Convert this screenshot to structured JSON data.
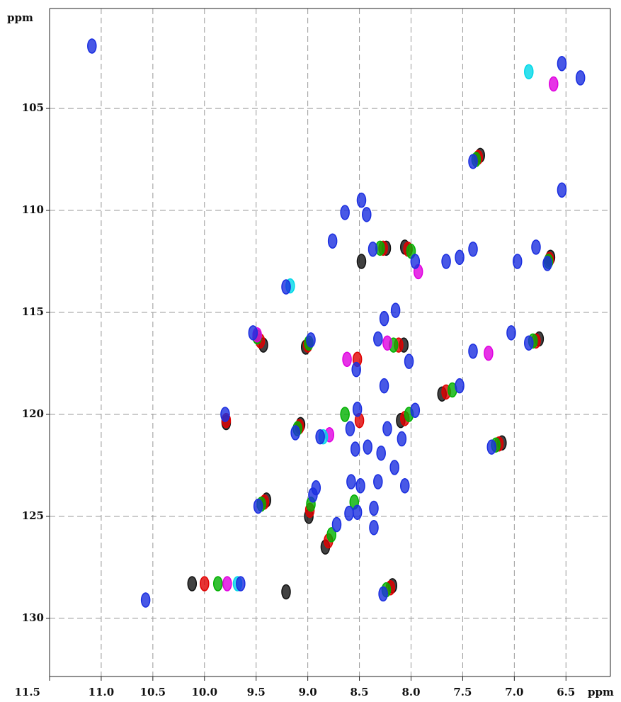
{
  "chart_data": {
    "type": "scatter",
    "x_label": "ppm",
    "y_label": "ppm",
    "xlim": [
      11.5,
      6.07
    ],
    "ylim": [
      100.1,
      132.85
    ],
    "xticks": [
      11.5,
      {
        "value": 11,
        "label": "11.0"
      },
      10.5,
      {
        "value": 10,
        "label": "10.0"
      },
      9.5,
      {
        "value": 9,
        "label": "9.0"
      },
      8.5,
      {
        "value": 8,
        "label": "8.0"
      },
      7.5,
      {
        "value": 7,
        "label": "7.0"
      },
      6.5
    ],
    "yticks": [
      105,
      110,
      115,
      120,
      125,
      130
    ],
    "grid": true,
    "series": [
      {
        "color": "#111111",
        "x": [
          9.43,
          9.02,
          9.79,
          9.07,
          9.4,
          8.99,
          8.83,
          8.18,
          7.12,
          7.7,
          7.33,
          8.24,
          8.06,
          6.65,
          8.07,
          6.76,
          8.1,
          10.12,
          9.21,
          8.48
        ],
        "y": [
          116.6,
          116.7,
          120.4,
          120.5,
          124.2,
          125.0,
          126.5,
          128.4,
          121.4,
          119.0,
          107.3,
          111.85,
          111.8,
          112.3,
          116.6,
          116.3,
          120.3,
          128.3,
          128.7,
          112.5
        ]
      },
      {
        "color": "#e00000",
        "x": [
          9.46,
          9.0,
          9.79,
          9.08,
          9.42,
          8.98,
          8.8,
          8.2,
          7.15,
          7.66,
          7.35,
          8.27,
          8.03,
          6.66,
          8.12,
          6.79,
          8.06,
          10.0,
          8.5,
          8.52
        ],
        "y": [
          116.4,
          116.6,
          120.3,
          120.6,
          124.3,
          124.7,
          126.2,
          128.5,
          121.45,
          118.9,
          107.4,
          111.85,
          111.9,
          112.4,
          116.6,
          116.4,
          120.2,
          128.3,
          120.3,
          117.3
        ]
      },
      {
        "color": "#00b000",
        "x": [
          9.49,
          8.99,
          9.1,
          9.45,
          8.97,
          8.77,
          8.24,
          7.18,
          7.6,
          7.37,
          8.3,
          8.0,
          6.67,
          8.17,
          6.82,
          8.02,
          9.87,
          8.64,
          8.55
        ],
        "y": [
          116.2,
          116.5,
          120.7,
          124.4,
          124.4,
          125.9,
          128.6,
          121.5,
          118.8,
          107.5,
          111.85,
          112.0,
          112.5,
          116.6,
          116.4,
          120.0,
          128.3,
          120.0,
          124.3
        ]
      },
      {
        "color": "#e000e0",
        "x": [
          8.79,
          8.23,
          7.93,
          6.62,
          8.62,
          9.78,
          7.25,
          9.49
        ],
        "y": [
          121.0,
          116.5,
          113.0,
          103.8,
          117.3,
          128.3,
          117.0,
          116.1
        ]
      },
      {
        "color": "#00d8e8",
        "x": [
          9.17,
          8.85,
          9.68,
          6.86
        ],
        "y": [
          113.7,
          121.1,
          128.3,
          103.2
        ]
      },
      {
        "color": "#1a2ee0",
        "x": [
          11.09,
          7.4,
          6.54,
          6.36,
          6.54,
          8.48,
          8.64,
          8.43,
          8.76,
          8.37,
          7.96,
          7.66,
          7.53,
          7.4,
          6.97,
          6.79,
          6.68,
          9.21,
          8.26,
          8.15,
          9.53,
          8.97,
          8.32,
          7.4,
          7.03,
          6.86,
          8.53,
          8.02,
          8.26,
          7.53,
          9.8,
          8.52,
          7.96,
          9.12,
          8.88,
          8.59,
          8.42,
          8.23,
          8.09,
          7.22,
          8.54,
          8.29,
          8.16,
          8.06,
          8.32,
          8.58,
          8.49,
          8.92,
          9.48,
          8.6,
          8.36,
          8.52,
          8.36,
          8.72,
          8.27,
          8.95,
          9.65,
          10.57
        ],
        "y": [
          101.94,
          107.6,
          102.8,
          103.5,
          109.0,
          109.5,
          110.1,
          110.2,
          111.5,
          111.9,
          112.5,
          112.5,
          112.3,
          111.9,
          112.5,
          111.8,
          112.6,
          113.75,
          115.3,
          114.9,
          116.0,
          116.35,
          116.3,
          116.9,
          116.0,
          116.5,
          117.8,
          117.4,
          118.6,
          118.6,
          120.0,
          119.75,
          119.8,
          120.9,
          121.1,
          120.7,
          121.6,
          120.7,
          121.2,
          121.6,
          121.7,
          121.9,
          122.6,
          123.5,
          123.3,
          123.3,
          123.5,
          123.6,
          124.5,
          124.85,
          124.6,
          124.8,
          125.55,
          125.4,
          128.8,
          123.95,
          128.3,
          129.1
        ]
      }
    ]
  }
}
